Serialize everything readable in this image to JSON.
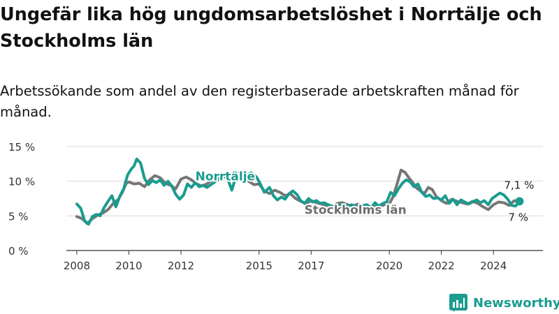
{
  "header": {
    "title": "Ungefär lika hög ungdomsarbetslöshet i Norrtälje och Stockholms län",
    "subtitle": "Arbetssökande som andel av den registerbaserade arbetskraften månad för månad."
  },
  "brand": {
    "name": "Newsworthy",
    "icon": "bar-chart-icon",
    "color": "#1a9c8f"
  },
  "chart_data": {
    "type": "line",
    "title": "Ungefär lika hög ungdomsarbetslöshet i Norrtälje och Stockholms län",
    "subtitle": "Arbetssökande som andel av den registerbaserade arbetskraften månad för månad.",
    "xlabel": "",
    "ylabel": "",
    "xlim": [
      2007.6,
      2025.9
    ],
    "ylim": [
      0,
      15
    ],
    "yticks": [
      {
        "value": 0,
        "label": "0 %"
      },
      {
        "value": 5,
        "label": "5 %"
      },
      {
        "value": 10,
        "label": "10 %"
      },
      {
        "value": 15,
        "label": "15 %"
      }
    ],
    "xticks": [
      {
        "value": 2008,
        "label": "2008"
      },
      {
        "value": 2010,
        "label": "2010"
      },
      {
        "value": 2012,
        "label": "2012"
      },
      {
        "value": 2015,
        "label": "2015"
      },
      {
        "value": 2017,
        "label": "2017"
      },
      {
        "value": 2020,
        "label": "2020"
      },
      {
        "value": 2022,
        "label": "2022"
      },
      {
        "value": 2024,
        "label": "2024"
      }
    ],
    "grid": true,
    "series": [
      {
        "name": "Stockholms län",
        "color": "#6f6f6f",
        "end_label": "7 %",
        "points": [
          [
            2008.0,
            4.9
          ],
          [
            2008.2,
            4.6
          ],
          [
            2008.4,
            3.9
          ],
          [
            2008.6,
            4.6
          ],
          [
            2008.8,
            5.1
          ],
          [
            2009.0,
            5.4
          ],
          [
            2009.2,
            5.9
          ],
          [
            2009.4,
            6.8
          ],
          [
            2009.6,
            7.4
          ],
          [
            2009.75,
            8.4
          ],
          [
            2009.9,
            9.7
          ],
          [
            2010.0,
            9.9
          ],
          [
            2010.2,
            9.6
          ],
          [
            2010.4,
            9.7
          ],
          [
            2010.6,
            9.2
          ],
          [
            2010.8,
            10.2
          ],
          [
            2011.0,
            10.8
          ],
          [
            2011.2,
            10.5
          ],
          [
            2011.4,
            9.7
          ],
          [
            2011.6,
            9.4
          ],
          [
            2011.8,
            8.9
          ],
          [
            2012.0,
            10.3
          ],
          [
            2012.2,
            10.6
          ],
          [
            2012.4,
            10.2
          ],
          [
            2012.6,
            9.6
          ],
          [
            2012.8,
            9.3
          ],
          [
            2013.0,
            9.6
          ],
          [
            2013.2,
            10.2
          ],
          [
            2013.4,
            10.1
          ],
          [
            2013.6,
            10.8
          ],
          [
            2013.8,
            10.3
          ],
          [
            2014.0,
            10.9
          ],
          [
            2014.2,
            11.2
          ],
          [
            2014.4,
            10.8
          ],
          [
            2014.6,
            10.0
          ],
          [
            2014.8,
            9.5
          ],
          [
            2015.0,
            9.6
          ],
          [
            2015.2,
            8.6
          ],
          [
            2015.4,
            8.2
          ],
          [
            2015.6,
            8.7
          ],
          [
            2015.8,
            8.4
          ],
          [
            2016.0,
            7.9
          ],
          [
            2016.2,
            8.2
          ],
          [
            2016.4,
            7.5
          ],
          [
            2016.6,
            7.1
          ],
          [
            2016.8,
            6.8
          ],
          [
            2017.0,
            7.2
          ],
          [
            2017.2,
            6.9
          ],
          [
            2017.4,
            6.7
          ],
          [
            2017.6,
            6.5
          ],
          [
            2017.8,
            6.3
          ],
          [
            2018.0,
            6.8
          ],
          [
            2018.2,
            6.9
          ],
          [
            2018.4,
            6.6
          ],
          [
            2018.6,
            6.4
          ],
          [
            2018.8,
            6.7
          ],
          [
            2019.0,
            6.3
          ],
          [
            2019.2,
            6.1
          ],
          [
            2019.4,
            6.4
          ],
          [
            2019.6,
            6.2
          ],
          [
            2019.8,
            6.6
          ],
          [
            2020.0,
            6.7
          ],
          [
            2020.15,
            7.8
          ],
          [
            2020.3,
            9.6
          ],
          [
            2020.45,
            11.6
          ],
          [
            2020.6,
            11.3
          ],
          [
            2020.75,
            10.5
          ],
          [
            2020.9,
            9.8
          ],
          [
            2021.05,
            9.0
          ],
          [
            2021.2,
            8.6
          ],
          [
            2021.35,
            8.2
          ],
          [
            2021.5,
            9.1
          ],
          [
            2021.65,
            8.8
          ],
          [
            2021.8,
            7.8
          ],
          [
            2022.0,
            7.2
          ],
          [
            2022.2,
            6.8
          ],
          [
            2022.4,
            7.4
          ],
          [
            2022.6,
            7.1
          ],
          [
            2022.8,
            6.9
          ],
          [
            2023.0,
            6.7
          ],
          [
            2023.2,
            7.1
          ],
          [
            2023.4,
            6.8
          ],
          [
            2023.6,
            6.3
          ],
          [
            2023.8,
            5.9
          ],
          [
            2024.0,
            6.6
          ],
          [
            2024.2,
            7.0
          ],
          [
            2024.4,
            6.9
          ],
          [
            2024.6,
            6.5
          ],
          [
            2024.8,
            7.2
          ],
          [
            2025.0,
            7.0
          ]
        ]
      },
      {
        "name": "Norrtälje",
        "color": "#1a9c8f",
        "end_label": "7,1 %",
        "points": [
          [
            2008.0,
            6.7
          ],
          [
            2008.15,
            6.1
          ],
          [
            2008.3,
            4.3
          ],
          [
            2008.45,
            3.8
          ],
          [
            2008.6,
            4.9
          ],
          [
            2008.75,
            5.2
          ],
          [
            2008.9,
            5.0
          ],
          [
            2009.05,
            6.2
          ],
          [
            2009.2,
            7.1
          ],
          [
            2009.35,
            7.9
          ],
          [
            2009.5,
            6.3
          ],
          [
            2009.65,
            7.8
          ],
          [
            2009.8,
            8.9
          ],
          [
            2009.95,
            10.9
          ],
          [
            2010.1,
            11.8
          ],
          [
            2010.2,
            12.2
          ],
          [
            2010.3,
            13.2
          ],
          [
            2010.45,
            12.6
          ],
          [
            2010.6,
            10.4
          ],
          [
            2010.75,
            9.5
          ],
          [
            2010.9,
            10.1
          ],
          [
            2011.05,
            9.8
          ],
          [
            2011.2,
            10.2
          ],
          [
            2011.35,
            9.4
          ],
          [
            2011.5,
            10.0
          ],
          [
            2011.65,
            9.3
          ],
          [
            2011.8,
            8.1
          ],
          [
            2011.95,
            7.4
          ],
          [
            2012.1,
            8.0
          ],
          [
            2012.25,
            9.6
          ],
          [
            2012.4,
            9.1
          ],
          [
            2012.55,
            9.8
          ],
          [
            2012.7,
            9.2
          ],
          [
            2012.85,
            9.4
          ],
          [
            2013.0,
            9.1
          ],
          [
            2013.3,
            9.9
          ],
          [
            2013.6,
            11.1
          ],
          [
            2013.8,
            10.3
          ],
          [
            2013.95,
            8.7
          ],
          [
            2014.1,
            10.5
          ],
          [
            2014.3,
            10.7
          ],
          [
            2014.5,
            10.9
          ],
          [
            2014.7,
            11.2
          ],
          [
            2014.9,
            10.6
          ],
          [
            2015.05,
            9.6
          ],
          [
            2015.2,
            8.4
          ],
          [
            2015.4,
            9.1
          ],
          [
            2015.55,
            7.9
          ],
          [
            2015.7,
            7.3
          ],
          [
            2015.85,
            7.7
          ],
          [
            2016.0,
            7.4
          ],
          [
            2016.15,
            8.2
          ],
          [
            2016.3,
            8.6
          ],
          [
            2016.45,
            8.1
          ],
          [
            2016.6,
            7.2
          ],
          [
            2016.75,
            6.8
          ],
          [
            2016.9,
            7.5
          ],
          [
            2017.05,
            7.0
          ],
          [
            2017.2,
            7.2
          ],
          [
            2017.35,
            6.8
          ],
          [
            2017.5,
            6.9
          ],
          [
            2017.65,
            6.6
          ],
          [
            2017.8,
            6.4
          ],
          [
            2017.95,
            6.2
          ],
          [
            2018.1,
            6.5
          ],
          [
            2018.25,
            6.7
          ],
          [
            2018.4,
            6.3
          ],
          [
            2018.55,
            6.6
          ],
          [
            2018.7,
            6.4
          ],
          [
            2018.85,
            6.3
          ],
          [
            2019.0,
            6.5
          ],
          [
            2019.15,
            6.6
          ],
          [
            2019.3,
            6.1
          ],
          [
            2019.45,
            6.9
          ],
          [
            2019.6,
            6.4
          ],
          [
            2019.75,
            6.8
          ],
          [
            2019.9,
            7.0
          ],
          [
            2020.05,
            8.4
          ],
          [
            2020.2,
            7.9
          ],
          [
            2020.35,
            8.9
          ],
          [
            2020.5,
            9.7
          ],
          [
            2020.65,
            10.2
          ],
          [
            2020.8,
            9.9
          ],
          [
            2020.95,
            9.2
          ],
          [
            2021.1,
            9.6
          ],
          [
            2021.25,
            8.4
          ],
          [
            2021.4,
            7.8
          ],
          [
            2021.55,
            8.0
          ],
          [
            2021.7,
            7.5
          ],
          [
            2021.85,
            7.6
          ],
          [
            2022.0,
            7.3
          ],
          [
            2022.15,
            7.9
          ],
          [
            2022.3,
            6.8
          ],
          [
            2022.45,
            7.4
          ],
          [
            2022.6,
            6.6
          ],
          [
            2022.75,
            7.3
          ],
          [
            2022.9,
            7.0
          ],
          [
            2023.05,
            6.7
          ],
          [
            2023.2,
            7.0
          ],
          [
            2023.35,
            7.3
          ],
          [
            2023.5,
            6.9
          ],
          [
            2023.65,
            7.2
          ],
          [
            2023.8,
            6.6
          ],
          [
            2023.95,
            7.5
          ],
          [
            2024.1,
            7.9
          ],
          [
            2024.25,
            8.3
          ],
          [
            2024.4,
            8.0
          ],
          [
            2024.55,
            7.4
          ],
          [
            2024.7,
            6.5
          ],
          [
            2024.85,
            6.4
          ],
          [
            2025.0,
            7.1
          ]
        ]
      }
    ],
    "annotations": [
      {
        "text": "Norrtälje",
        "series": 1,
        "x": 2013.7,
        "y": 10.1
      },
      {
        "text": "Stockholms län",
        "series": 0,
        "x": 2018.7,
        "y": 5.3
      }
    ]
  }
}
